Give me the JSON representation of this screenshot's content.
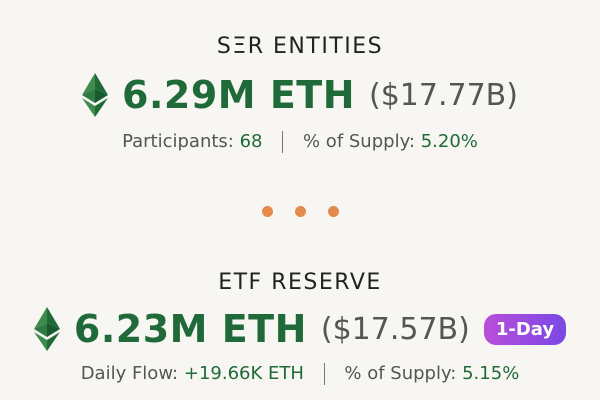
{
  "sections": [
    {
      "title": "SΞR ENTITIES",
      "amount": "6.29M ETH",
      "usd": "($17.77B)",
      "stat1_label": "Participants:",
      "stat1_value": "68",
      "stat2_label": "% of Supply:",
      "stat2_value": "5.20%"
    },
    {
      "title": "ETF RESERVE",
      "amount": "6.23M ETH",
      "usd": "($17.57B)",
      "badge": "1-Day",
      "stat1_label": "Daily Flow:",
      "stat1_value": "+19.66K ETH",
      "stat2_label": "% of Supply:",
      "stat2_value": "5.15%"
    }
  ],
  "icon": "ethereum-diamond-icon",
  "colors": {
    "eth_green": "#1f6a38",
    "dot_orange": "#e48a4d",
    "badge_gradient_start": "#b94ed8",
    "badge_gradient_end": "#7a48e6"
  }
}
